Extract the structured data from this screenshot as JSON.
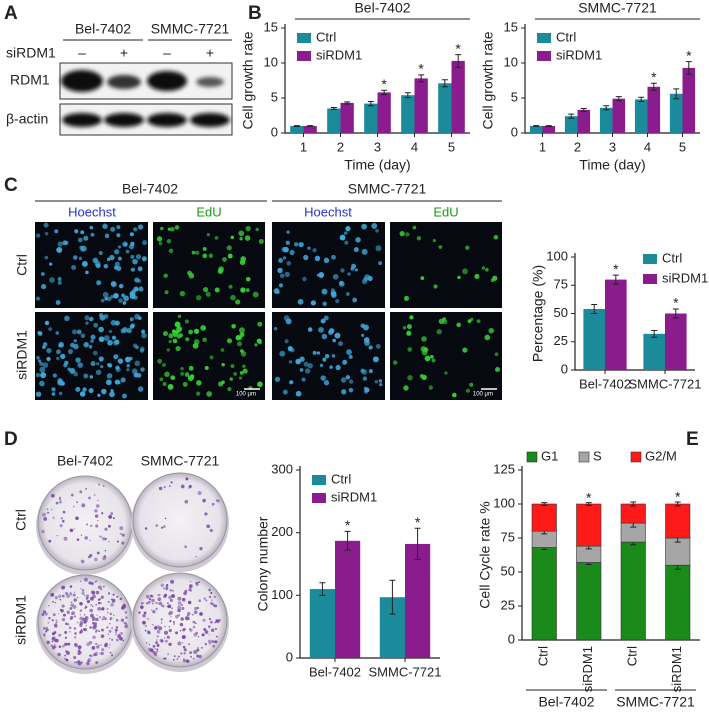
{
  "panels": {
    "A": {
      "letter": "A",
      "cell_lines": [
        "Bel-7402",
        "SMMC-7721"
      ],
      "treatment_label": "siRDM1",
      "treatment_marks": [
        "–",
        "+",
        "–",
        "+"
      ],
      "proteins": [
        "RDM1",
        "β-actin"
      ]
    },
    "B": {
      "letter": "B"
    },
    "C": {
      "letter": "C",
      "cell_lines": [
        "Bel-7402",
        "SMMC-7721"
      ],
      "stains": [
        "Hoechst",
        "EdU",
        "Hoechst",
        "EdU"
      ],
      "rows": [
        "Ctrl",
        "siRDM1"
      ],
      "scale_bar": "100 μm"
    },
    "D": {
      "letter": "D",
      "cell_lines": [
        "Bel-7402",
        "SMMC-7721"
      ],
      "rows": [
        "Ctrl",
        "siRDM1"
      ]
    },
    "E": {
      "letter": "E"
    }
  },
  "chart_data": [
    {
      "type": "bar",
      "title": "Bel-7402",
      "ylabel": "Cell growth rate",
      "xlabel": "Time (day)",
      "categories": [
        "1",
        "2",
        "3",
        "4",
        "5"
      ],
      "ylim": [
        0,
        15
      ],
      "yticks": [
        0,
        5,
        10,
        15
      ],
      "legend": "upper left",
      "series": [
        {
          "name": "Ctrl",
          "color": "#1b8a9b",
          "values": [
            1,
            3.5,
            4.2,
            5.4,
            7.1
          ],
          "errors": [
            0.05,
            0.15,
            0.3,
            0.35,
            0.5
          ]
        },
        {
          "name": "siRDM1",
          "color": "#8b1c8e",
          "values": [
            1,
            4.3,
            5.8,
            7.8,
            10.3
          ],
          "errors": [
            0.05,
            0.15,
            0.3,
            0.5,
            0.9
          ],
          "annotations": [
            null,
            null,
            "*",
            "*",
            "*"
          ]
        }
      ]
    },
    {
      "type": "bar",
      "title": "SMMC-7721",
      "ylabel": "Cell growth rate",
      "xlabel": "Time (day)",
      "categories": [
        "1",
        "2",
        "3",
        "4",
        "5"
      ],
      "ylim": [
        0,
        15
      ],
      "yticks": [
        0,
        5,
        10,
        15
      ],
      "legend": "upper left",
      "series": [
        {
          "name": "Ctrl",
          "color": "#1b8a9b",
          "values": [
            1,
            2.4,
            3.6,
            4.8,
            5.6
          ],
          "errors": [
            0.05,
            0.3,
            0.3,
            0.3,
            0.7
          ]
        },
        {
          "name": "siRDM1",
          "color": "#8b1c8e",
          "values": [
            1,
            3.3,
            4.9,
            6.6,
            9.3
          ],
          "errors": [
            0.05,
            0.2,
            0.3,
            0.5,
            0.9
          ],
          "annotations": [
            null,
            null,
            null,
            "*",
            "*"
          ]
        }
      ]
    },
    {
      "type": "bar",
      "ylabel": "Percentage (%)",
      "categories": [
        "Bel-7402",
        "SMMC-7721"
      ],
      "ylim": [
        0,
        100
      ],
      "yticks": [
        0,
        25,
        50,
        75,
        100
      ],
      "legend": "upper right",
      "series": [
        {
          "name": "Ctrl",
          "color": "#1b8a9b",
          "values": [
            54,
            32
          ],
          "errors": [
            4,
            3
          ]
        },
        {
          "name": "siRDM1",
          "color": "#8b1c8e",
          "values": [
            80,
            50
          ],
          "errors": [
            4,
            4
          ],
          "annotations": [
            "*",
            "*"
          ]
        }
      ]
    },
    {
      "type": "bar",
      "ylabel": "Colony number",
      "categories": [
        "Bel-7402",
        "SMMC-7721"
      ],
      "ylim": [
        0,
        300
      ],
      "yticks": [
        0,
        100,
        200,
        300
      ],
      "legend": "upper left",
      "series": [
        {
          "name": "Ctrl",
          "color": "#1b8a9b",
          "values": [
            110,
            97
          ],
          "errors": [
            10,
            27
          ]
        },
        {
          "name": "siRDM1",
          "color": "#8b1c8e",
          "values": [
            187,
            182
          ],
          "errors": [
            15,
            25
          ],
          "annotations": [
            "*",
            "*"
          ]
        }
      ]
    },
    {
      "type": "bar",
      "stacked": true,
      "ylabel": "Cell Cycle rate %",
      "categories": [
        "Ctrl",
        "siRDM1",
        "Ctrl",
        "siRDM1"
      ],
      "group_labels": [
        "Bel-7402",
        "SMMC-7721"
      ],
      "ylim": [
        0,
        125
      ],
      "yticks": [
        0,
        25,
        50,
        75,
        100,
        125
      ],
      "legend": "top",
      "annotations": [
        null,
        "*",
        null,
        "*"
      ],
      "series": [
        {
          "name": "G1",
          "color": "#1a8a1a",
          "values": [
            68,
            57,
            72,
            55
          ],
          "errors": [
            1.5,
            1.5,
            2,
            3
          ]
        },
        {
          "name": "S",
          "color": "#a6a6a6",
          "values": [
            12,
            12,
            14,
            20
          ],
          "errors": [
            2,
            2,
            3,
            3
          ]
        },
        {
          "name": "G2/M",
          "color": "#ff1a1a",
          "values": [
            20,
            31,
            14,
            25
          ],
          "errors": [
            1,
            1,
            1.5,
            1.5
          ]
        }
      ]
    }
  ]
}
